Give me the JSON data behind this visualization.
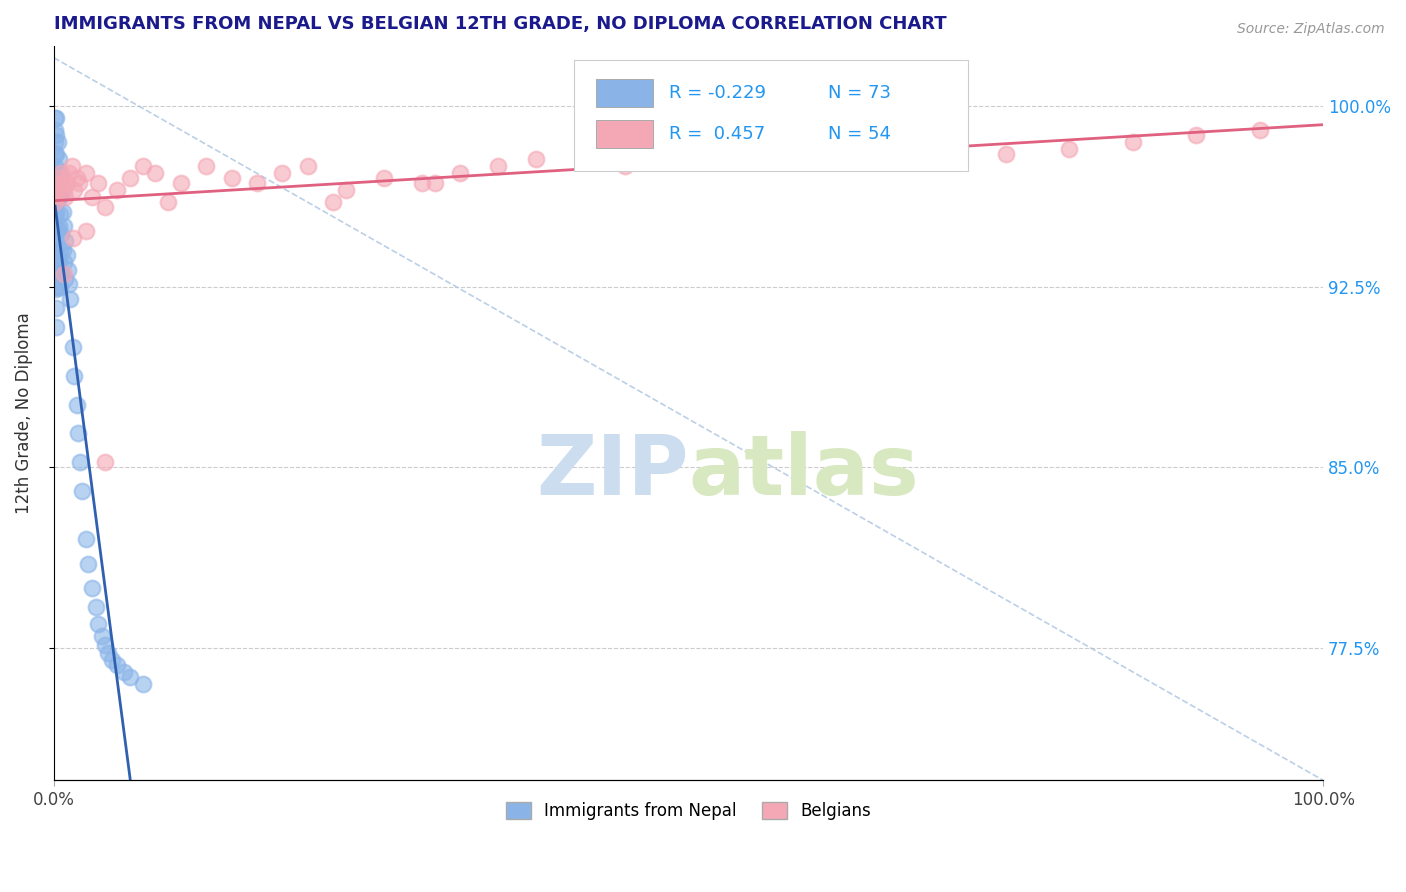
{
  "title": "IMMIGRANTS FROM NEPAL VS BELGIAN 12TH GRADE, NO DIPLOMA CORRELATION CHART",
  "source_text": "Source: ZipAtlas.com",
  "ylabel": "12th Grade, No Diploma",
  "legend_label1": "Immigrants from Nepal",
  "legend_label2": "Belgians",
  "r1": -0.229,
  "n1": 73,
  "r2": 0.457,
  "n2": 54,
  "xlim": [
    0.0,
    1.0
  ],
  "ylim": [
    0.72,
    1.025
  ],
  "yticks": [
    0.775,
    0.85,
    0.925,
    1.0
  ],
  "ytick_labels": [
    "77.5%",
    "85.0%",
    "92.5%",
    "100.0%"
  ],
  "color_nepal": "#8ab4e8",
  "color_belgium": "#f4a7b5",
  "color_nepal_line": "#3060b0",
  "color_belgium_line": "#e06080",
  "color_diag": "#aac4e0",
  "title_color": "#1a1a8c",
  "watermark_color": "#d0e4f5",
  "nepal_x": [
    0.001,
    0.001,
    0.001,
    0.001,
    0.001,
    0.001,
    0.001,
    0.001,
    0.001,
    0.001,
    0.001,
    0.001,
    0.001,
    0.001,
    0.001,
    0.002,
    0.002,
    0.002,
    0.002,
    0.002,
    0.002,
    0.002,
    0.002,
    0.002,
    0.002,
    0.002,
    0.002,
    0.003,
    0.003,
    0.003,
    0.003,
    0.003,
    0.003,
    0.004,
    0.004,
    0.004,
    0.004,
    0.005,
    0.005,
    0.005,
    0.005,
    0.006,
    0.006,
    0.006,
    0.007,
    0.007,
    0.008,
    0.008,
    0.009,
    0.009,
    0.01,
    0.011,
    0.012,
    0.013,
    0.015,
    0.016,
    0.018,
    0.019,
    0.021,
    0.022,
    0.025,
    0.027,
    0.03,
    0.033,
    0.035,
    0.038,
    0.04,
    0.043,
    0.046,
    0.05,
    0.055,
    0.06,
    0.07
  ],
  "nepal_y": [
    0.995,
    0.99,
    0.985,
    0.98,
    0.975,
    0.97,
    0.965,
    0.96,
    0.955,
    0.95,
    0.945,
    0.94,
    0.935,
    0.93,
    0.925,
    0.995,
    0.988,
    0.98,
    0.972,
    0.964,
    0.956,
    0.948,
    0.94,
    0.932,
    0.924,
    0.916,
    0.908,
    0.985,
    0.973,
    0.961,
    0.949,
    0.937,
    0.925,
    0.978,
    0.964,
    0.95,
    0.936,
    0.97,
    0.955,
    0.94,
    0.925,
    0.963,
    0.947,
    0.931,
    0.956,
    0.94,
    0.95,
    0.935,
    0.944,
    0.928,
    0.938,
    0.932,
    0.926,
    0.92,
    0.9,
    0.888,
    0.876,
    0.864,
    0.852,
    0.84,
    0.82,
    0.81,
    0.8,
    0.792,
    0.785,
    0.78,
    0.776,
    0.773,
    0.77,
    0.768,
    0.765,
    0.763,
    0.76
  ],
  "belgium_x": [
    0.001,
    0.002,
    0.003,
    0.004,
    0.005,
    0.006,
    0.007,
    0.008,
    0.009,
    0.01,
    0.012,
    0.014,
    0.016,
    0.018,
    0.02,
    0.025,
    0.03,
    0.035,
    0.04,
    0.05,
    0.06,
    0.07,
    0.08,
    0.09,
    0.1,
    0.12,
    0.14,
    0.16,
    0.18,
    0.2,
    0.23,
    0.26,
    0.29,
    0.32,
    0.35,
    0.38,
    0.42,
    0.45,
    0.5,
    0.55,
    0.6,
    0.65,
    0.7,
    0.75,
    0.8,
    0.85,
    0.9,
    0.95,
    0.3,
    0.22,
    0.008,
    0.015,
    0.025,
    0.04
  ],
  "belgium_y": [
    0.96,
    0.962,
    0.965,
    0.967,
    0.97,
    0.972,
    0.968,
    0.965,
    0.962,
    0.968,
    0.972,
    0.975,
    0.965,
    0.97,
    0.968,
    0.972,
    0.962,
    0.968,
    0.958,
    0.965,
    0.97,
    0.975,
    0.972,
    0.96,
    0.968,
    0.975,
    0.97,
    0.968,
    0.972,
    0.975,
    0.965,
    0.97,
    0.968,
    0.972,
    0.975,
    0.978,
    0.98,
    0.975,
    0.978,
    0.982,
    0.985,
    0.982,
    0.978,
    0.98,
    0.982,
    0.985,
    0.988,
    0.99,
    0.968,
    0.96,
    0.93,
    0.945,
    0.948,
    0.852
  ]
}
